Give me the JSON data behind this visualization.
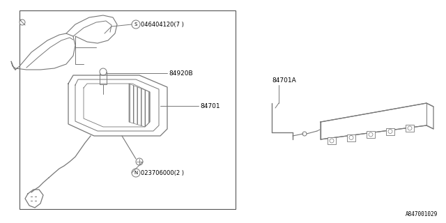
{
  "background_color": "#ffffff",
  "border_color": "#555555",
  "line_color": "#777777",
  "text_color": "#000000",
  "diagram_id": "A847001029",
  "fig_width": 6.4,
  "fig_height": 3.2,
  "dpi": 100,
  "labels": {
    "s_label": "©046404120(7 )",
    "n_label": "©023706000(2 )",
    "part_84920b": "84920B",
    "part_84701": "84701",
    "part_84701a": "84701A"
  }
}
